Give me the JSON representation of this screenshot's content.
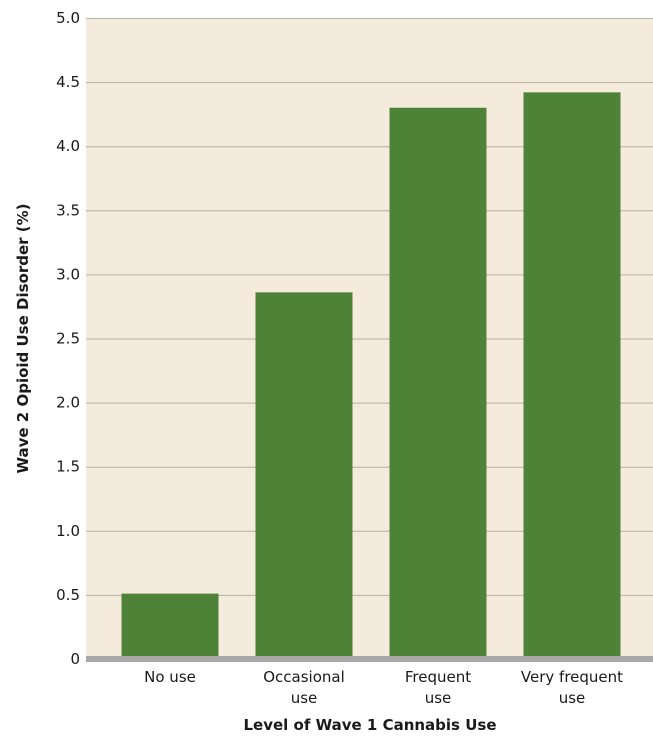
{
  "chart_data": {
    "type": "bar",
    "title": "",
    "xlabel": "Level of Wave 1 Cannabis Use",
    "ylabel": "Wave 2 Opioid Use Disorder (%)",
    "categories": [
      [
        "No use"
      ],
      [
        "Occasional",
        "use"
      ],
      [
        "Frequent",
        "use"
      ],
      [
        "Very frequent",
        "use"
      ]
    ],
    "values": [
      0.51,
      2.86,
      4.3,
      4.42
    ],
    "ylim": [
      0,
      5.0
    ],
    "yticks": [
      {
        "value": 0,
        "label": "0"
      },
      {
        "value": 0.5,
        "label": "0.5"
      },
      {
        "value": 1.0,
        "label": "1.0"
      },
      {
        "value": 1.5,
        "label": "1.5"
      },
      {
        "value": 2.0,
        "label": "2.0"
      },
      {
        "value": 2.5,
        "label": "2.5"
      },
      {
        "value": 3.0,
        "label": "3.0"
      },
      {
        "value": 3.5,
        "label": "3.5"
      },
      {
        "value": 4.0,
        "label": "4.0"
      },
      {
        "value": 4.5,
        "label": "4.5"
      },
      {
        "value": 5.0,
        "label": "5.0"
      }
    ],
    "grid": true,
    "legend": "none",
    "colors": {
      "bar": "#4e8236",
      "plot_background": "#f5ebdc",
      "gridline": "#b8b0a4",
      "baseline": "#a9a9a9",
      "text": "#1a1a1a"
    }
  }
}
